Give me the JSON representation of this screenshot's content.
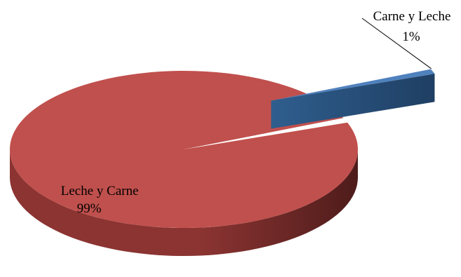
{
  "chart_data": {
    "type": "pie",
    "style": "3d-exploded",
    "categories": [
      "Leche y Carne",
      "Carne y Leche"
    ],
    "values": [
      99,
      1
    ],
    "labels": [
      {
        "name": "Leche y Carne",
        "percent": "99%"
      },
      {
        "name": "Carne y Leche",
        "percent": "1%"
      }
    ],
    "colors": {
      "top": [
        "#C0504D",
        "#4F81BD"
      ],
      "side": [
        "#8B3432",
        "#2F5E8E"
      ],
      "side_dark": [
        "#4E1C1B",
        "#1F3F63"
      ],
      "leader_line": "#000000"
    },
    "legend": "none"
  }
}
